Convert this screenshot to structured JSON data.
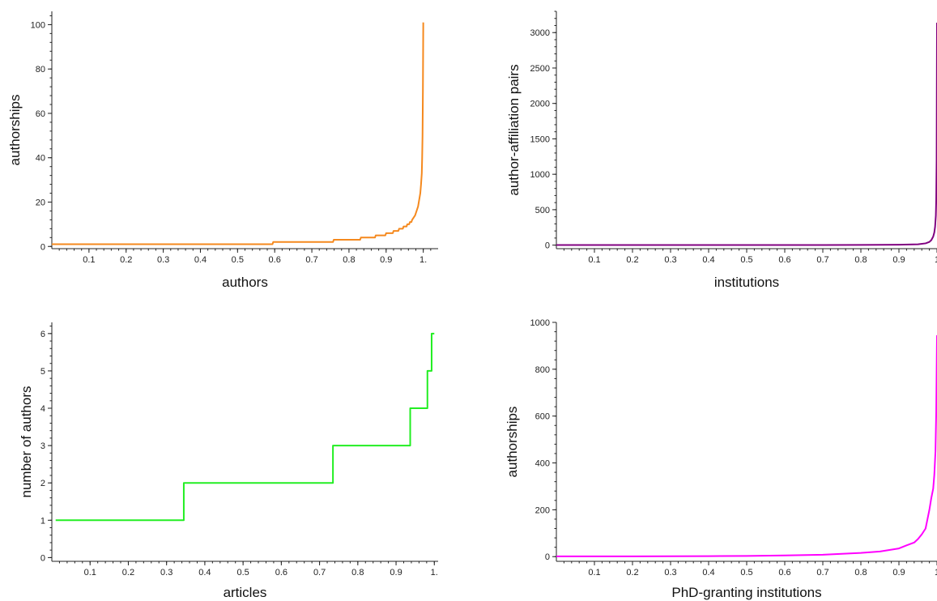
{
  "chart_data": [
    {
      "type": "line",
      "title": "",
      "xlabel": "authors",
      "ylabel": "authorships",
      "xlim": [
        0,
        1.04
      ],
      "ylim": [
        -1,
        106
      ],
      "xticks": [
        "0.1",
        "0.2",
        "0.3",
        "0.4",
        "0.5",
        "0.6",
        "0.7",
        "0.8",
        "0.9",
        "1."
      ],
      "yticks": [
        "0",
        "20",
        "40",
        "60",
        "80",
        "100"
      ],
      "grid": false,
      "color": "#f5891e",
      "series": [
        {
          "step": false,
          "x": [
            0.0,
            0.594,
            0.596,
            0.757,
            0.759,
            0.83,
            0.832,
            0.87,
            0.872,
            0.898,
            0.9,
            0.918,
            0.92,
            0.933,
            0.935,
            0.945,
            0.947,
            0.955,
            0.957,
            0.962,
            0.964,
            0.968,
            0.97,
            0.974,
            0.978,
            0.982,
            0.986,
            0.989,
            0.992,
            0.994,
            0.996,
            0.997,
            0.998,
            0.999,
            1.0
          ],
          "y": [
            1,
            1,
            2,
            2,
            3,
            3,
            4,
            4,
            5,
            5,
            6,
            6,
            7,
            7,
            8,
            8,
            9,
            9,
            10,
            10,
            11,
            11,
            12,
            13,
            14,
            16,
            18,
            21,
            24,
            28,
            33,
            40,
            50,
            70,
            101
          ]
        }
      ]
    },
    {
      "type": "line",
      "title": "",
      "xlabel": "institutions",
      "ylabel": "author-affiliation pairs",
      "xlim": [
        0,
        1.0
      ],
      "ylim": [
        -50,
        3300
      ],
      "xticks": [
        "0.1",
        "0.2",
        "0.3",
        "0.4",
        "0.5",
        "0.6",
        "0.7",
        "0.8",
        "0.9",
        "1"
      ],
      "yticks": [
        "0",
        "500",
        "1000",
        "1500",
        "2000",
        "2500",
        "3000"
      ],
      "grid": false,
      "color": "#800080",
      "series": [
        {
          "step": false,
          "x": [
            0.0,
            0.3,
            0.5,
            0.7,
            0.8,
            0.9,
            0.95,
            0.97,
            0.98,
            0.985,
            0.99,
            0.993,
            0.995,
            0.997,
            0.998,
            0.999,
            1.0
          ],
          "y": [
            1,
            1,
            1,
            2,
            3,
            6,
            12,
            25,
            45,
            70,
            120,
            180,
            260,
            420,
            650,
            1200,
            3140
          ]
        }
      ]
    },
    {
      "type": "line",
      "title": "",
      "xlabel": "articles",
      "ylabel": "number of authors",
      "xlim": [
        0,
        1.01
      ],
      "ylim": [
        -0.1,
        6.3
      ],
      "xticks": [
        "0.1",
        "0.2",
        "0.3",
        "0.4",
        "0.5",
        "0.6",
        "0.7",
        "0.8",
        "0.9",
        "1."
      ],
      "yticks": [
        "0",
        "1",
        "2",
        "3",
        "4",
        "5",
        "6"
      ],
      "grid": false,
      "color": "#22ee22",
      "series": [
        {
          "step": true,
          "x": [
            0.01,
            0.345,
            0.735,
            0.937,
            0.982,
            0.993,
            1.0
          ],
          "y": [
            1,
            2,
            3,
            4,
            5,
            6,
            6
          ]
        }
      ]
    },
    {
      "type": "line",
      "title": "",
      "xlabel": "PhD-granting institutions",
      "ylabel": "authorships",
      "xlim": [
        0,
        1.0
      ],
      "ylim": [
        -20,
        1000
      ],
      "xticks": [
        "0.1",
        "0.2",
        "0.3",
        "0.4",
        "0.5",
        "0.6",
        "0.7",
        "0.8",
        "0.9",
        "1"
      ],
      "yticks": [
        "0",
        "200",
        "400",
        "600",
        "800",
        "1000"
      ],
      "grid": false,
      "color": "#ff00ff",
      "series": [
        {
          "step": false,
          "x": [
            0.0,
            0.2,
            0.4,
            0.5,
            0.6,
            0.7,
            0.75,
            0.8,
            0.85,
            0.9,
            0.92,
            0.94,
            0.95,
            0.96,
            0.97,
            0.975,
            0.98,
            0.985,
            0.99,
            0.993,
            0.996,
            0.998,
            1.0
          ],
          "y": [
            1,
            1,
            2,
            3,
            5,
            8,
            12,
            16,
            22,
            35,
            48,
            60,
            75,
            95,
            120,
            160,
            200,
            250,
            290,
            350,
            450,
            620,
            945
          ]
        }
      ]
    }
  ]
}
